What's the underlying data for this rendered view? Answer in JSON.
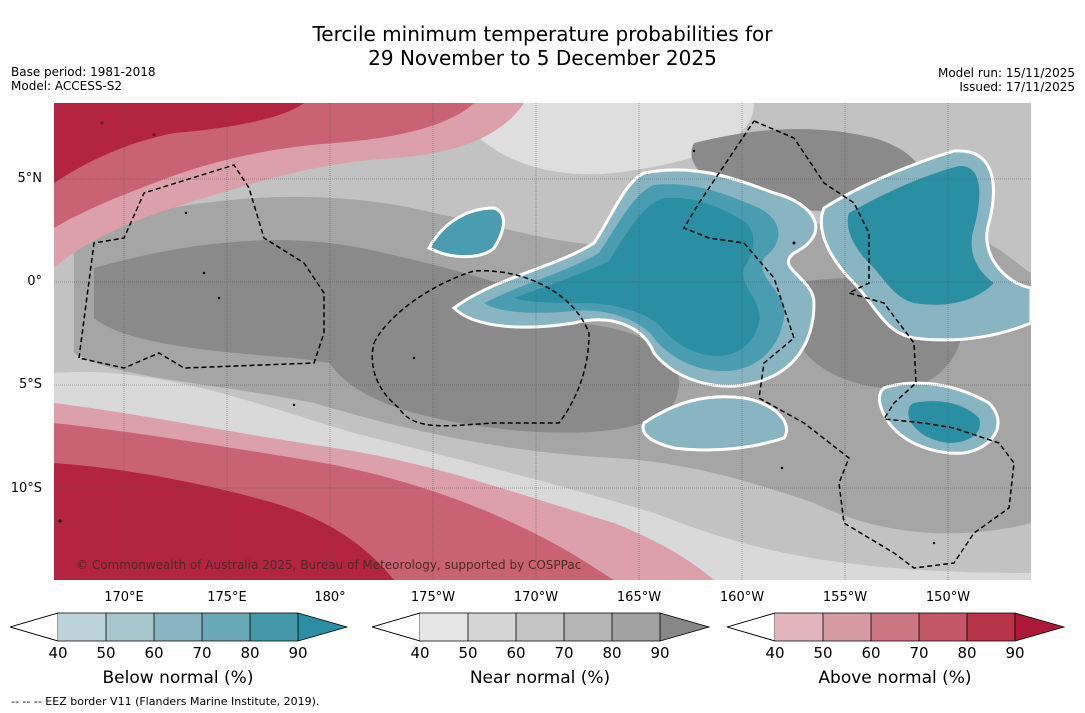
{
  "title": {
    "line1": "Tercile minimum temperature probabilities for",
    "line2": "29 November to 5 December 2025"
  },
  "meta_left": {
    "base_period": "Base period: 1981-2018",
    "model": "Model: ACCESS-S2"
  },
  "meta_right": {
    "model_run": "Model run: 15/11/2025",
    "issued": "Issued: 17/11/2025"
  },
  "lat_labels": [
    "5°N",
    "0°",
    "5°S",
    "10°S"
  ],
  "lon_labels": [
    "170°E",
    "175°E",
    "180°",
    "175°W",
    "170°W",
    "165°W",
    "160°W",
    "155°W",
    "150°W"
  ],
  "copyright": "© Commonwealth of Australia 2025, Bureau of Meteorology, supported by COSPPac",
  "colorbars": [
    {
      "label": "Below normal (%)",
      "ticks": [
        "40",
        "50",
        "60",
        "70",
        "80",
        "90"
      ],
      "colors": [
        "#bcd3da",
        "#a6c6ce",
        "#88b5c1",
        "#69a8b6",
        "#4599aa",
        "#2b8fa3"
      ]
    },
    {
      "label": "Near normal (%)",
      "ticks": [
        "40",
        "50",
        "60",
        "70",
        "80",
        "90"
      ],
      "colors": [
        "#e6e6e6",
        "#d6d6d6",
        "#c5c5c5",
        "#b4b4b4",
        "#a2a2a2",
        "#878787"
      ]
    },
    {
      "label": "Above normal (%)",
      "ticks": [
        "40",
        "50",
        "60",
        "70",
        "80",
        "90"
      ],
      "colors": [
        "#e3b5bd",
        "#d69aa3",
        "#cb7680",
        "#c25867",
        "#b83448",
        "#ad1937"
      ]
    }
  ],
  "footnote": "--  --  -- EEZ border V11 (Flanders Marine Institute, 2019).",
  "map_colors": {
    "near_base": "#c2c2c2",
    "near_light": "#d9d9d9",
    "near_mid": "#a5a5a5",
    "near_dark": "#8a8a8a",
    "above_light": "#dca0aa",
    "above_mid": "#c96272",
    "above_dark": "#b22440",
    "below_light": "#88b5c1",
    "below_mid": "#4a9db0",
    "below_dark": "#2b8fa3"
  }
}
